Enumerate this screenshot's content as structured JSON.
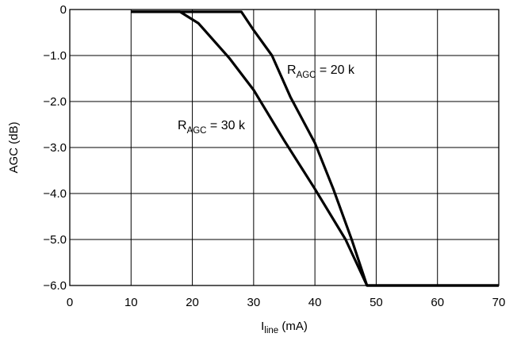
{
  "chart_data": {
    "type": "line",
    "title": "",
    "xlabel": {
      "main": "I",
      "sub": "line",
      "suffix": " (mA)"
    },
    "ylabel": "AGC (dB)",
    "xlim": [
      0,
      70
    ],
    "ylim": [
      -6.0,
      0
    ],
    "x_ticks": [
      0,
      10,
      20,
      30,
      40,
      50,
      60,
      70
    ],
    "x_tick_labels": [
      "0",
      "10",
      "20",
      "30",
      "40",
      "50",
      "60",
      "70"
    ],
    "y_ticks": [
      0,
      -1.0,
      -2.0,
      -3.0,
      -4.0,
      -5.0,
      -6.0
    ],
    "y_tick_labels": [
      "0",
      "−1.0",
      "−2.0",
      "−3.0",
      "−4.0",
      "−5.0",
      "−6.0"
    ],
    "grid": true,
    "legend": "none",
    "line_color": "#000000",
    "series": [
      {
        "name": "R_AGC = 30 k",
        "x": [
          10,
          18,
          21,
          26,
          30,
          35,
          40,
          45,
          48.5,
          70
        ],
        "y": [
          -0.05,
          -0.05,
          -0.3,
          -1.05,
          -1.75,
          -2.85,
          -3.9,
          -5.0,
          -6.0,
          -6.0
        ]
      },
      {
        "name": "R_AGC = 20 k",
        "x": [
          10,
          28,
          30,
          33,
          36,
          40,
          43,
          46,
          48.5,
          70
        ],
        "y": [
          -0.05,
          -0.05,
          -0.45,
          -1.0,
          -1.9,
          -2.9,
          -3.9,
          -5.0,
          -6.0,
          -6.0
        ]
      }
    ],
    "annotations": [
      {
        "main": "R",
        "sub": "AGC",
        "suffix": " = 20 k",
        "series": 1
      },
      {
        "main": "R",
        "sub": "AGC",
        "suffix": " = 30 k",
        "series": 0
      }
    ]
  }
}
